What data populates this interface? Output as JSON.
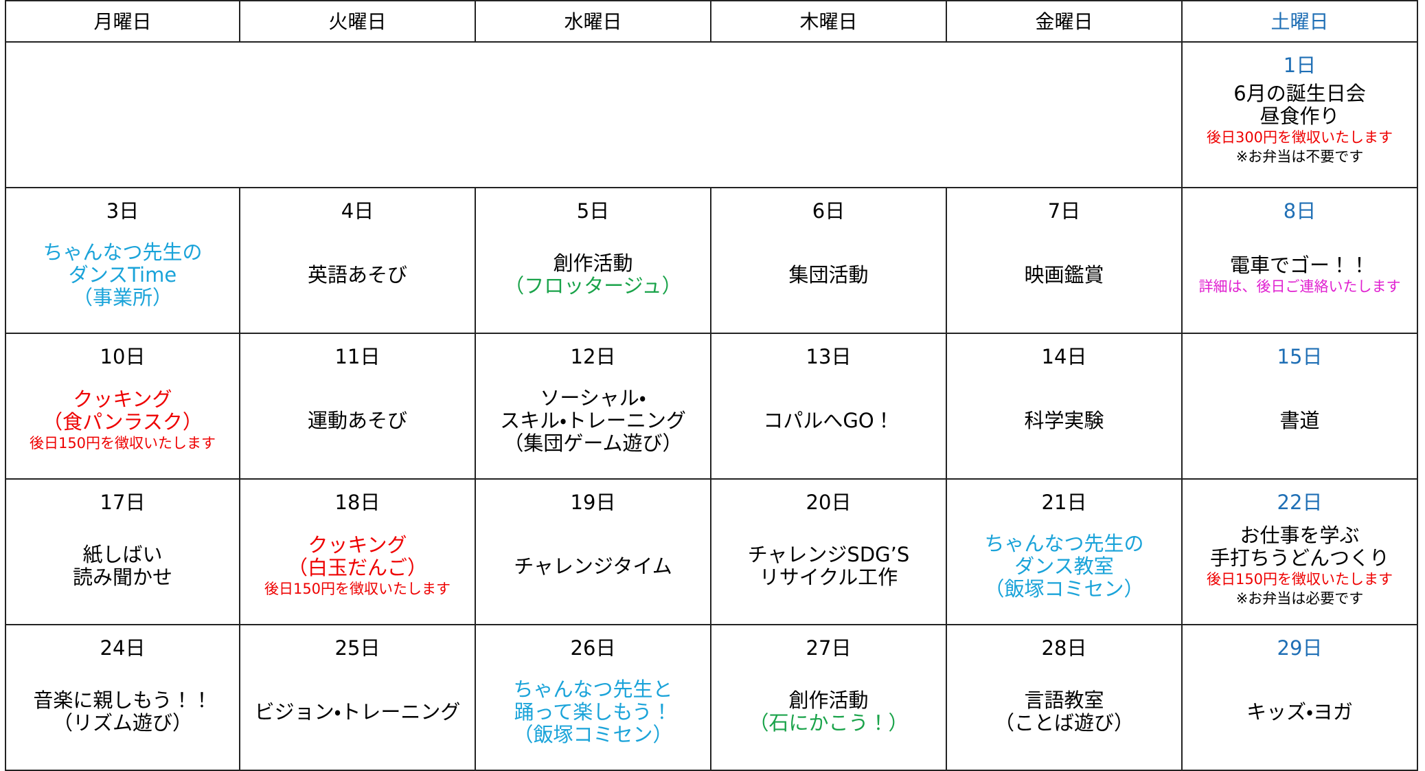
{
  "header": [
    "月曜日",
    "火曜日",
    "水曜日",
    "木曜日",
    "金曜日",
    "土曜日"
  ],
  "weeks": [
    {
      "cells": [
        null,
        null,
        null,
        null,
        null,
        {
          "date": "1日",
          "lines": [
            {
              "text": "6月の誕生日会",
              "color": "#000000"
            },
            {
              "text": "昼食作り",
              "color": "#000000"
            }
          ],
          "notes": [
            {
              "text": "後日300円を徴収いたします",
              "color": "#ee0000"
            },
            {
              "text": "※お弁当は不要です",
              "color": "#000000"
            }
          ]
        }
      ]
    },
    {
      "cells": [
        {
          "date": "3日",
          "lines": [
            {
              "text": "ちゃんなつ先生の",
              "color": "#1aa3d9"
            },
            {
              "text": "ダンスTime",
              "color": "#1aa3d9"
            },
            {
              "text": "（事業所）",
              "color": "#1aa3d9"
            }
          ]
        },
        {
          "date": "4日",
          "lines": [
            {
              "text": "英語あそび",
              "color": "#000000"
            }
          ]
        },
        {
          "date": "5日",
          "lines": [
            {
              "text": "創作活動",
              "color": "#000000"
            },
            {
              "text": "（フロッタージュ）",
              "color": "#1aa34a"
            }
          ]
        },
        {
          "date": "6日",
          "lines": [
            {
              "text": "集団活動",
              "color": "#000000"
            }
          ]
        },
        {
          "date": "7日",
          "lines": [
            {
              "text": "映画鑑賞",
              "color": "#000000"
            }
          ]
        },
        {
          "date": "8日",
          "lines": [
            {
              "text": "電車でゴー！！",
              "color": "#000000"
            }
          ],
          "notes": [
            {
              "text": "詳細は、後日ご連絡いたします",
              "color": "#e020d0"
            }
          ]
        }
      ]
    },
    {
      "cells": [
        {
          "date": "10日",
          "lines": [
            {
              "text": "クッキング",
              "color": "#ee0000"
            },
            {
              "text": "（食パンラスク）",
              "color": "#ee0000"
            }
          ],
          "notes": [
            {
              "text": "後日150円を徴収いたします",
              "color": "#ee0000"
            }
          ]
        },
        {
          "date": "11日",
          "lines": [
            {
              "text": "運動あそび",
              "color": "#000000"
            }
          ]
        },
        {
          "date": "12日",
          "lines": [
            {
              "text": "ソーシャル・",
              "color": "#000000"
            },
            {
              "text": "スキル・トレーニング",
              "color": "#000000"
            },
            {
              "text": "（集団ゲーム遊び）",
              "color": "#000000"
            }
          ]
        },
        {
          "date": "13日",
          "lines": [
            {
              "text": "コパルへGO！",
              "color": "#000000"
            }
          ]
        },
        {
          "date": "14日",
          "lines": [
            {
              "text": "科学実験",
              "color": "#000000"
            }
          ]
        },
        {
          "date": "15日",
          "lines": [
            {
              "text": "書道",
              "color": "#000000"
            }
          ]
        }
      ]
    },
    {
      "cells": [
        {
          "date": "17日",
          "lines": [
            {
              "text": "紙しばい",
              "color": "#000000"
            },
            {
              "text": "読み聞かせ",
              "color": "#000000"
            }
          ]
        },
        {
          "date": "18日",
          "lines": [
            {
              "text": "クッキング",
              "color": "#ee0000"
            },
            {
              "text": "（白玉だんご）",
              "color": "#ee0000"
            }
          ],
          "notes": [
            {
              "text": "後日150円を徴収いたします",
              "color": "#ee0000"
            }
          ]
        },
        {
          "date": "19日",
          "lines": [
            {
              "text": "チャレンジタイム",
              "color": "#000000"
            }
          ]
        },
        {
          "date": "20日",
          "lines": [
            {
              "text": "チャレンジSDG’S",
              "color": "#000000"
            },
            {
              "text": "リサイクル工作",
              "color": "#000000"
            }
          ]
        },
        {
          "date": "21日",
          "lines": [
            {
              "text": "ちゃんなつ先生の",
              "color": "#1aa3d9"
            },
            {
              "text": "ダンス教室",
              "color": "#1aa3d9"
            },
            {
              "text": "（飯塚コミセン）",
              "color": "#1aa3d9"
            }
          ]
        },
        {
          "date": "22日",
          "lines": [
            {
              "text": "お仕事を学ぶ",
              "color": "#000000"
            },
            {
              "text": "手打ちうどんつくり",
              "color": "#000000"
            }
          ],
          "notes": [
            {
              "text": "後日150円を徴収いたします",
              "color": "#ee0000"
            },
            {
              "text": "※お弁当は必要です",
              "color": "#000000"
            }
          ]
        }
      ]
    },
    {
      "cells": [
        {
          "date": "24日",
          "lines": [
            {
              "text": "音楽に親しもう！！",
              "color": "#000000"
            },
            {
              "text": "（リズム遊び）",
              "color": "#000000"
            }
          ]
        },
        {
          "date": "25日",
          "lines": [
            {
              "text": "ビジョン・トレーニング",
              "color": "#000000"
            }
          ]
        },
        {
          "date": "26日",
          "lines": [
            {
              "text": "ちゃんなつ先生と",
              "color": "#1aa3d9"
            },
            {
              "text": "踊って楽しもう！",
              "color": "#1aa3d9"
            },
            {
              "text": "（飯塚コミセン）",
              "color": "#1aa3d9"
            }
          ]
        },
        {
          "date": "27日",
          "lines": [
            {
              "text": "創作活動",
              "color": "#000000"
            },
            {
              "text": "（石にかこう！）",
              "color": "#1aa34a"
            }
          ]
        },
        {
          "date": "28日",
          "lines": [
            {
              "text": "言語教室",
              "color": "#000000"
            },
            {
              "text": "（ことば遊び）",
              "color": "#000000"
            }
          ]
        },
        {
          "date": "29日",
          "lines": [
            {
              "text": "キッズ・ヨガ",
              "color": "#000000"
            }
          ]
        }
      ]
    }
  ]
}
